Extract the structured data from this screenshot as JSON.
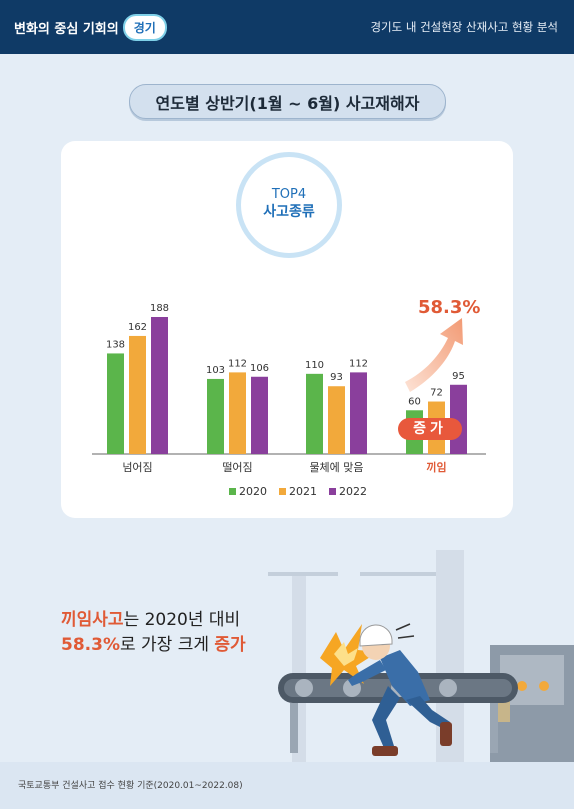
{
  "header": {
    "logo_text": "변화의 중심 기회의",
    "logo_badge": "경기",
    "right_title": "경기도 내 건설현장 산재사고 현황 분석"
  },
  "page_title": "연도별 상반기(1월 ~ 6월) 사고재해자",
  "top4": {
    "line1": "TOP4",
    "line2": "사고종류"
  },
  "chart_data": {
    "type": "bar",
    "title": "",
    "categories": [
      "넘어짐",
      "떨어짐",
      "물체에 맞음",
      "끼임"
    ],
    "series": [
      {
        "name": "2020",
        "values": [
          138,
          103,
          110,
          60
        ],
        "color": "#5bb54b"
      },
      {
        "name": "2021",
        "values": [
          162,
          112,
          93,
          72
        ],
        "color": "#f2a93b"
      },
      {
        "name": "2022",
        "values": [
          188,
          106,
          112,
          95
        ],
        "color": "#8a3f9c"
      }
    ],
    "highlight_category": "끼임",
    "highlight_color": "#e05a36",
    "annotation_percent": "58.3%",
    "annotation_badge": "증가",
    "ylim": [
      0,
      188
    ],
    "grid": false,
    "legend_placement": "bottom"
  },
  "summary": {
    "l1_hl": "끼임사고",
    "l1_text": "는 2020년 대비",
    "l2_hl": "58.3%",
    "l2_text": "로 가장 크게 ",
    "l2_hl2": "증가"
  },
  "footer": "국토교통부 건설사고 접수 현황 기준(2020.01~2022.08)"
}
